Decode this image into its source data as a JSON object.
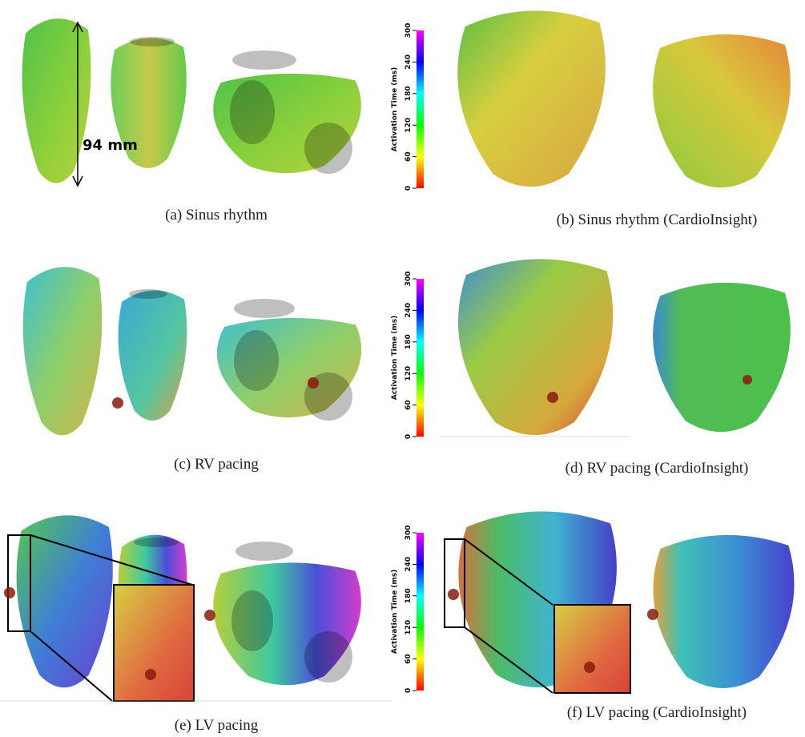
{
  "panels": [
    {
      "caption": "(a) Sinus rhythm",
      "annotation": "94 mm"
    },
    {
      "caption": "(b) Sinus rhythm (CardioInsight)",
      "colorbar": {
        "label": "Activation Time (ms)",
        "ticks": [
          0,
          60,
          120,
          180,
          240,
          300
        ]
      }
    },
    {
      "caption": "(c) RV pacing"
    },
    {
      "caption": "(d) RV pacing (CardioInsight)",
      "colorbar": {
        "label": "Activation Time (ms)",
        "ticks": [
          0,
          60,
          120,
          180,
          240,
          300
        ]
      }
    },
    {
      "caption": "(e) LV pacing"
    },
    {
      "caption": "(f) LV pacing (CardioInsight)",
      "colorbar": {
        "label": "Activation Time (ms)",
        "ticks": [
          0,
          60,
          120,
          180,
          240,
          300
        ]
      }
    }
  ]
}
